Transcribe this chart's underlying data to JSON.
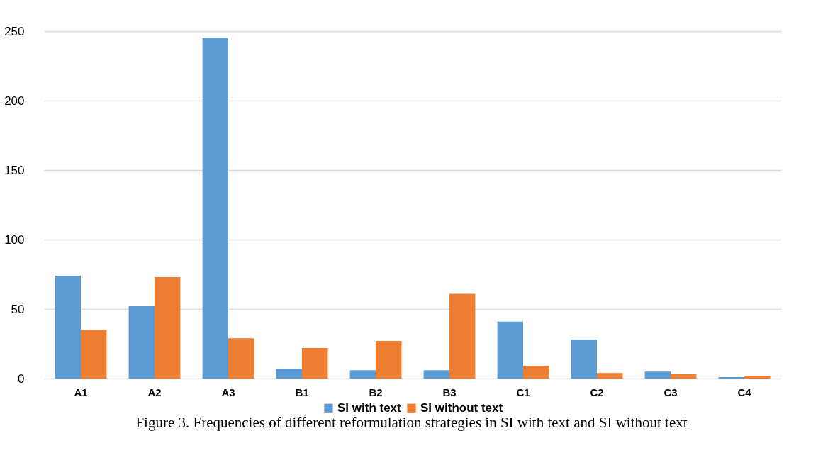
{
  "chart_data": {
    "type": "bar",
    "categories": [
      "A1",
      "A2",
      "A3",
      "B1",
      "B2",
      "B3",
      "C1",
      "C2",
      "C3",
      "C4"
    ],
    "series": [
      {
        "name": "SI with text",
        "color": "#5b9bd5",
        "values": [
          74,
          52,
          245,
          7,
          6,
          6,
          41,
          28,
          5,
          1
        ]
      },
      {
        "name": "SI without text",
        "color": "#ed7d31",
        "values": [
          35,
          73,
          29,
          22,
          27,
          61,
          9,
          4,
          3,
          2
        ]
      }
    ],
    "ylim": [
      0,
      250
    ],
    "yticks": [
      0,
      50,
      100,
      150,
      200,
      250
    ],
    "grid": "y",
    "legend": "bottom",
    "annotations": [
      "Figure 3. Frequencies of different reformulation strategies in SI with text and SI without text"
    ]
  }
}
